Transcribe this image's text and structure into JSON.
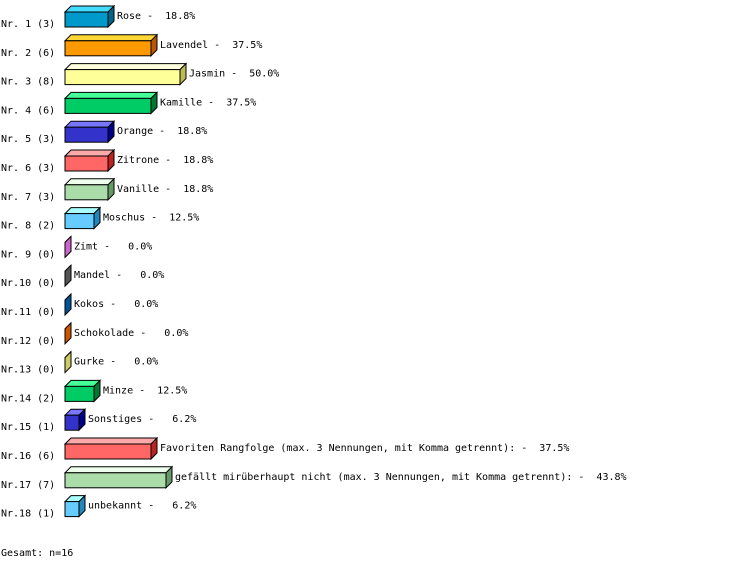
{
  "chart_data": {
    "type": "bar",
    "orientation": "horizontal",
    "style": "3d",
    "unit": "%",
    "xlim": [
      0,
      50
    ],
    "rows": [
      {
        "rank": "Nr. 1",
        "count": 3,
        "label": "Rose",
        "value": 18.8,
        "color": "#0099cc",
        "top": "#44ddff",
        "side": "#006688"
      },
      {
        "rank": "Nr. 2",
        "count": 6,
        "label": "Lavendel",
        "value": 37.5,
        "color": "#ff9900",
        "top": "#ffd633",
        "side": "#bb5500"
      },
      {
        "rank": "Nr. 3",
        "count": 8,
        "label": "Jasmin",
        "value": 50.0,
        "color": "#ffff99",
        "top": "#ffffdd",
        "side": "#bbbb55"
      },
      {
        "rank": "Nr. 4",
        "count": 6,
        "label": "Kamille",
        "value": 37.5,
        "color": "#00cc66",
        "top": "#44ff99",
        "side": "#007733"
      },
      {
        "rank": "Nr. 5",
        "count": 3,
        "label": "Orange",
        "value": 18.8,
        "color": "#3333cc",
        "top": "#7777ff",
        "side": "#000088"
      },
      {
        "rank": "Nr. 6",
        "count": 3,
        "label": "Zitrone",
        "value": 18.8,
        "color": "#ff6666",
        "top": "#ffaaaa",
        "side": "#bb2222"
      },
      {
        "rank": "Nr. 7",
        "count": 3,
        "label": "Vanille",
        "value": 18.8,
        "color": "#aaddaa",
        "top": "#eeffee",
        "side": "#669966"
      },
      {
        "rank": "Nr. 8",
        "count": 2,
        "label": "Moschus",
        "value": 12.5,
        "color": "#66ccff",
        "top": "#aaffff",
        "side": "#2288bb"
      },
      {
        "rank": "Nr. 9",
        "count": 0,
        "label": "Zimt",
        "value": 0.0,
        "color": "#cc66cc",
        "top": "#cc66cc",
        "side": "#cc66cc"
      },
      {
        "rank": "Nr.10",
        "count": 0,
        "label": "Mandel",
        "value": 0.0,
        "color": "#555555",
        "top": "#555555",
        "side": "#555555"
      },
      {
        "rank": "Nr.11",
        "count": 0,
        "label": "Kokos",
        "value": 0.0,
        "color": "#005599",
        "top": "#005599",
        "side": "#005599"
      },
      {
        "rank": "Nr.12",
        "count": 0,
        "label": "Schokolade",
        "value": 0.0,
        "color": "#cc5500",
        "top": "#cc5500",
        "side": "#cc5500"
      },
      {
        "rank": "Nr.13",
        "count": 0,
        "label": "Gurke",
        "value": 0.0,
        "color": "#cccc66",
        "top": "#cccc66",
        "side": "#cccc66"
      },
      {
        "rank": "Nr.14",
        "count": 2,
        "label": "Minze",
        "value": 12.5,
        "color": "#00cc66",
        "top": "#44ff99",
        "side": "#007733"
      },
      {
        "rank": "Nr.15",
        "count": 1,
        "label": "Sonstiges",
        "value": 6.2,
        "color": "#3333cc",
        "top": "#7777ff",
        "side": "#000088"
      },
      {
        "rank": "Nr.16",
        "count": 6,
        "label": "Favoriten Rangfolge (max. 3 Nennungen, mit Komma getrennt):",
        "value": 37.5,
        "color": "#ff6666",
        "top": "#ffaaaa",
        "side": "#bb2222"
      },
      {
        "rank": "Nr.17",
        "count": 7,
        "label": "gefällt mirüberhaupt nicht (max. 3 Nennungen, mit Komma getrennt):",
        "value": 43.8,
        "color": "#aaddaa",
        "top": "#eeffee",
        "side": "#669966"
      },
      {
        "rank": "Nr.18",
        "count": 1,
        "label": "unbekannt",
        "value": 6.2,
        "color": "#66ccff",
        "top": "#aaffff",
        "side": "#2288bb"
      }
    ]
  },
  "footer": {
    "total": "Gesamt: n=16"
  }
}
